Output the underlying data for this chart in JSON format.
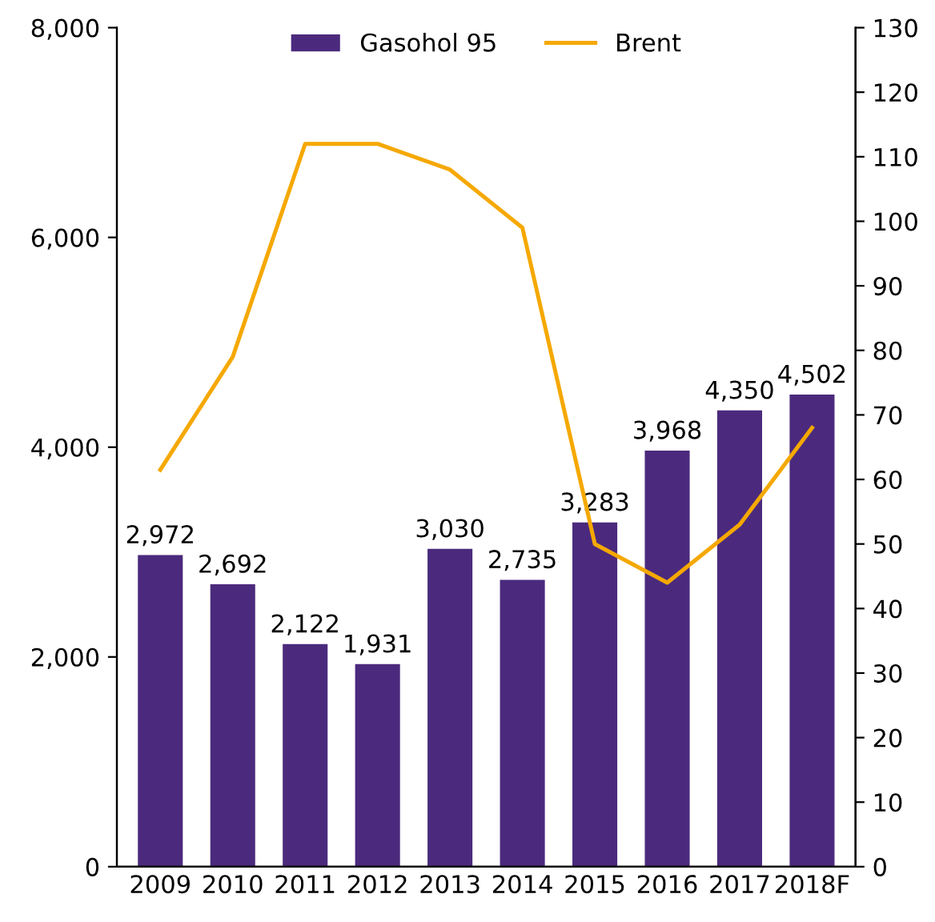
{
  "chart_data": {
    "type": "bar",
    "categories": [
      "2009",
      "2010",
      "2011",
      "2012",
      "2013",
      "2014",
      "2015",
      "2016",
      "2017",
      "2018F"
    ],
    "series": [
      {
        "name": "Gasohol 95",
        "color": "#4b2a7d",
        "values": [
          2972,
          2692,
          2122,
          1931,
          3030,
          2735,
          3283,
          3968,
          4350,
          4502
        ],
        "value_labels": [
          "2,972",
          "2,692",
          "2,122",
          "1,931",
          "3,030",
          "2,735",
          "3,283",
          "3,968",
          "4,350",
          "4,502"
        ]
      },
      {
        "name": "Brent",
        "type": "line",
        "axis": "y2",
        "color": "#f5a800",
        "values": [
          61.5,
          79,
          112,
          112,
          108,
          99,
          50,
          44,
          53,
          68
        ]
      }
    ],
    "ylim": [
      0,
      8000
    ],
    "yticks": [
      {
        "value": 0,
        "label": "0"
      },
      {
        "value": 2000,
        "label": "2,000"
      },
      {
        "value": 4000,
        "label": "4,000"
      },
      {
        "value": 6000,
        "label": "6,000"
      },
      {
        "value": 8000,
        "label": "8,000"
      }
    ],
    "y2lim": [
      0,
      130
    ],
    "y2ticks": [
      0,
      10,
      20,
      30,
      40,
      50,
      60,
      70,
      80,
      90,
      100,
      110,
      120,
      130
    ],
    "legend": "top",
    "grid": false,
    "marker": "none",
    "line_style": "solid"
  }
}
